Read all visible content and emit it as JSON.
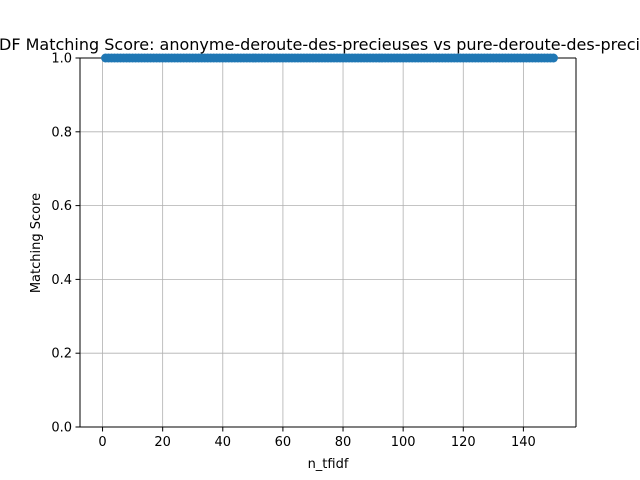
{
  "chart_data": {
    "type": "scatter",
    "title": "TF-IDF Matching Score: anonyme-deroute-des-precieuses vs pure-deroute-des-precieuses",
    "xlabel": "n_tfidf",
    "ylabel": "Matching Score",
    "xlim": [
      -7.5,
      157.5
    ],
    "ylim": [
      0.0,
      1.0
    ],
    "xticks": [
      0,
      20,
      40,
      60,
      80,
      100,
      120,
      140
    ],
    "yticks": [
      0.0,
      0.2,
      0.4,
      0.6,
      0.8,
      1.0
    ],
    "xtick_labels": [
      "0",
      "20",
      "40",
      "60",
      "80",
      "100",
      "120",
      "140"
    ],
    "ytick_labels": [
      "0.0",
      "0.2",
      "0.4",
      "0.6",
      "0.8",
      "1.0"
    ],
    "grid": true,
    "series": [
      {
        "x_start": 1,
        "x_end": 150,
        "x_step": 1,
        "y_constant": 1.0,
        "color": "#1f77b4"
      }
    ]
  }
}
